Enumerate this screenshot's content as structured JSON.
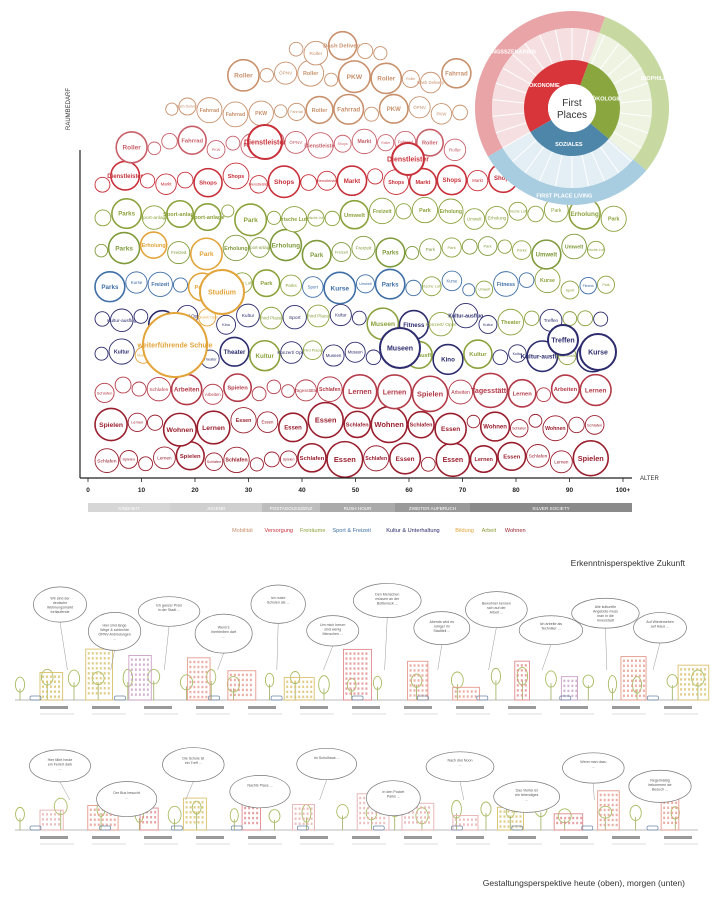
{
  "axes": {
    "y_label": "RAUMBEDARF",
    "x_label": "ALTER",
    "ticks": [
      "0",
      "10",
      "20",
      "30",
      "40",
      "50",
      "60",
      "70",
      "80",
      "90",
      "100+"
    ]
  },
  "phases": [
    "KINDHEIT",
    "JUGEND",
    "POSTADOLESZENZ",
    "RUSH HOUR",
    "ZWEITER AUFBRUCH",
    "SILVER SOCIETY"
  ],
  "legend": [
    {
      "label": "Mobilität",
      "color": "#c8916c"
    },
    {
      "label": "Versorgung",
      "color": "#c8313a"
    },
    {
      "label": "Freiräume",
      "color": "#8ba23c"
    },
    {
      "label": "Sport & Freizeit",
      "color": "#3f6fa6"
    },
    {
      "label": "Kultur & Unterhaltung",
      "color": "#2c2c6e"
    },
    {
      "label": "Bildung",
      "color": "#e3a43a"
    },
    {
      "label": "Arbeit",
      "color": "#8b9a3a"
    },
    {
      "label": "Wohnen",
      "color": "#9a1f2e"
    }
  ],
  "wheel": {
    "center": [
      "First",
      "Places"
    ],
    "sectors": [
      "ÖKONOMIE",
      "ÖKOLOGIE",
      "SOZIALES"
    ],
    "outer": [
      "NUTZUNGSSZENARIEN",
      "BIOPHILIE",
      "FIRST PLACE LIVING"
    ],
    "colors": {
      "oekonomie": "#d8353b",
      "oekologie": "#8aa63f",
      "soziales": "#4d86a8"
    }
  },
  "bubble_words": {
    "mobility": [
      "Fahrrad",
      "ÖPNV",
      "Dash Delivery",
      "PKW",
      "Roller"
    ],
    "supply": [
      "Markt",
      "Dienstleister",
      "Shops"
    ],
    "open": [
      "frische Luft",
      "Park",
      "Erholung",
      "Umwelt",
      "Parks",
      "Freizeit",
      "Sport-anlage"
    ],
    "sport": [
      "Sport",
      "Fitness",
      "Kurse",
      "Treffen"
    ],
    "culture": [
      "Museen",
      "Kultur",
      "Theater",
      "Konzert/ Oper",
      "Kultur-ausflug",
      "Third Places",
      "Kino"
    ],
    "education": [
      "Studium",
      "weiterführende Schule",
      "Grundschule",
      "Fortbildung"
    ],
    "work": [
      "Arbeiten",
      "Tagesstätte"
    ],
    "living": [
      "Schlafen",
      "Essen",
      "Spielen",
      "Lernen",
      "Wohnen"
    ]
  },
  "section_titles": {
    "top": "Erkenntnisperspektive Zukunft",
    "bottom": "Gestaltungsperspektive heute (oben), morgen (unten)"
  },
  "upper_bubbles": [
    "Wir sind der deutsche Wohnungsmarkt fortlaufende Wege ...",
    "Hier sind lange Wege & schlechte ÖPNV-Anbindungen ...",
    "Ich ganzer Preis in der Stadt ...",
    "Wenn's hierbleiben darf ...",
    "Ich nutze Schulen als ...",
    "Um mich herum sind wenig Menschen ...",
    "Den Menschen müssen an der Bottleneck ...",
    "Abends wird es ruhiger im Stadtteil ...",
    "Bewohner kennen sich auf der Arbeit ...",
    "Ich arbeite als Techniker ...",
    "Alle kulturelle Angebote muss man in die Innenstadt fahren ...",
    "Auf Wiedersehen auf Haus ..."
  ],
  "lower_bubbles": [
    "Hier fährt heute ein Feriert dark ...",
    "Der Bus besucht ...",
    "Die Schule ist ein Treff ...",
    "Nachts Place ...",
    "Im Schulhaus ...",
    "In den Pocket Parks ...",
    "Nach drei Noon ...",
    "Das Viertel ist ein lebendiges ...",
    "Wenn man dazu ...",
    "Regelmäßig bekommen wir Besuch ..."
  ]
}
